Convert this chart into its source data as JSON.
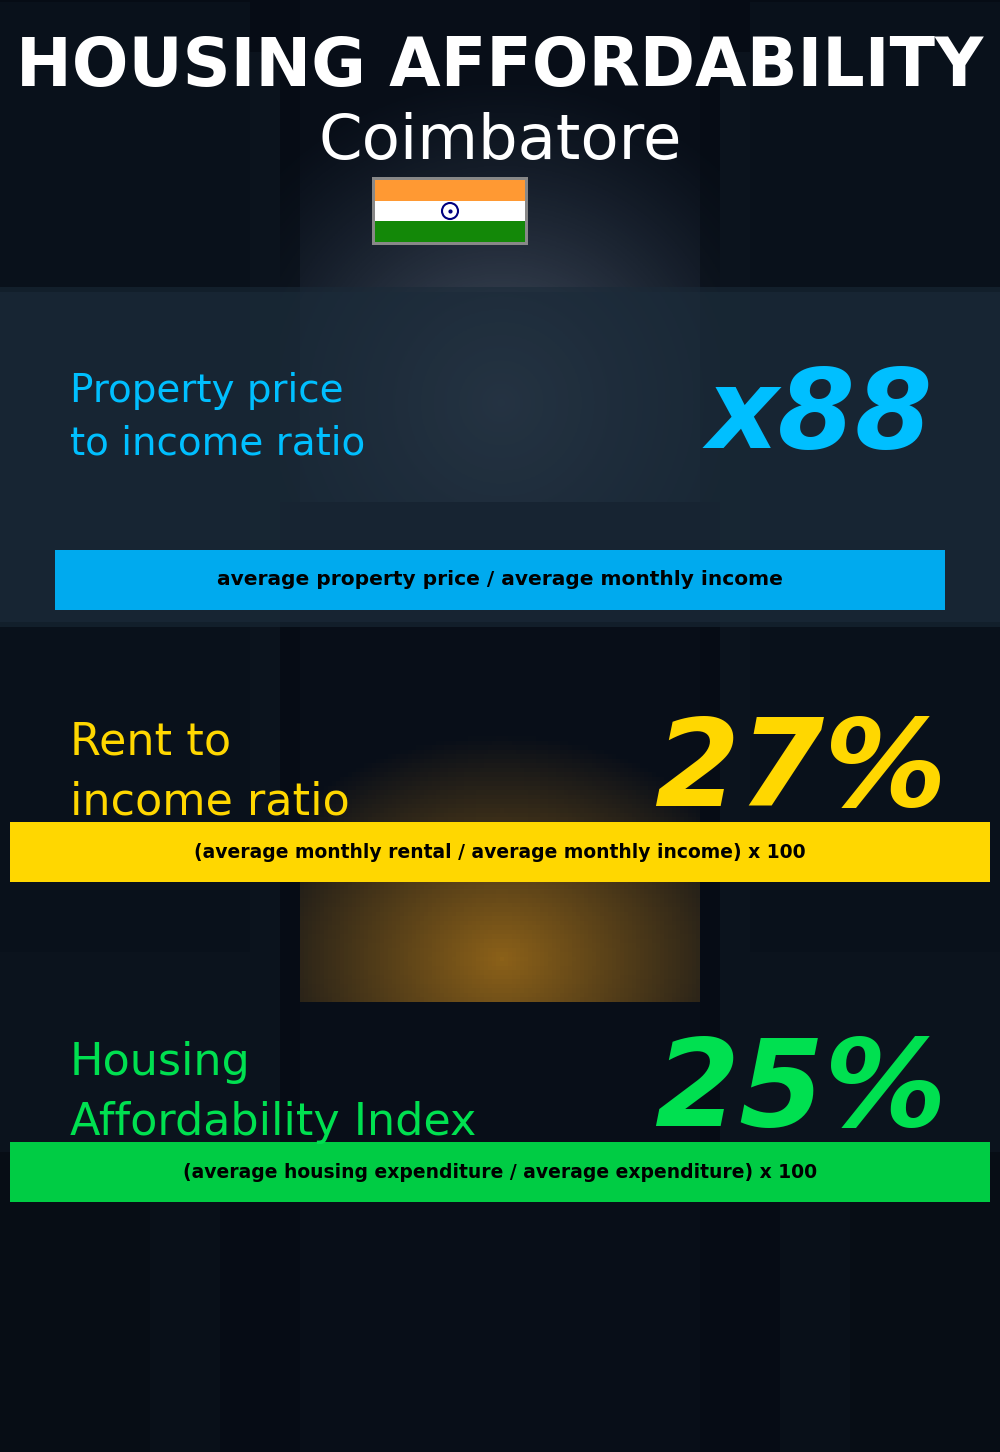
{
  "title_line1": "HOUSING AFFORDABILITY",
  "title_line2": "Coimbatore",
  "bg_color": "#080e18",
  "section1_label": "Property price\nto income ratio",
  "section1_value": "x88",
  "section1_label_color": "#00bfff",
  "section1_value_color": "#00bfff",
  "section1_banner_text": "average property price / average monthly income",
  "section1_banner_bg": "#00aaee",
  "section1_banner_text_color": "#000000",
  "section1_overlay_color": "#2a3a4a",
  "section2_label": "Rent to\nincome ratio",
  "section2_value": "27%",
  "section2_label_color": "#ffd700",
  "section2_value_color": "#ffd700",
  "section2_banner_text": "(average monthly rental / average monthly income) x 100",
  "section2_banner_bg": "#ffd700",
  "section2_banner_text_color": "#000000",
  "section3_label": "Housing\nAffordability Index",
  "section3_value": "25%",
  "section3_label_color": "#00e050",
  "section3_value_color": "#00e050",
  "section3_banner_text": "(average housing expenditure / average expenditure) x 100",
  "section3_banner_bg": "#00cc44",
  "section3_banner_text_color": "#000000",
  "title_color": "#ffffff",
  "subtitle_color": "#ffffff",
  "fig_width": 10.0,
  "fig_height": 14.52,
  "dpi": 100
}
